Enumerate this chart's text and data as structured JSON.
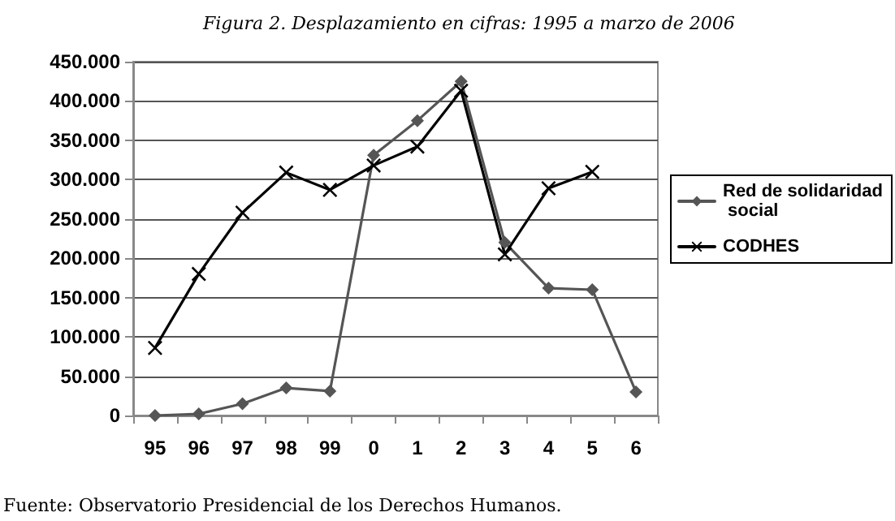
{
  "chart_data": {
    "type": "line",
    "title": "Figura 2. Desplazamiento en cifras: 1995 a marzo de 2006",
    "categories": [
      "95",
      "96",
      "97",
      "98",
      "99",
      "0",
      "1",
      "2",
      "3",
      "4",
      "5",
      "6"
    ],
    "series": [
      {
        "name": "Red de solidaridad social",
        "color": "#555555",
        "marker": "diamond",
        "values": [
          0,
          2000,
          15000,
          35000,
          31000,
          331000,
          375000,
          425000,
          220000,
          162000,
          160000,
          30000
        ]
      },
      {
        "name": "CODHES",
        "color": "#000000",
        "marker": "cross",
        "values": [
          86000,
          180000,
          258000,
          309000,
          287000,
          318000,
          342000,
          413000,
          205000,
          289000,
          310000,
          null
        ]
      }
    ],
    "ylim": [
      0,
      450000
    ],
    "yticks": [
      {
        "value": 0,
        "label": "0"
      },
      {
        "value": 50000,
        "label": "50.000"
      },
      {
        "value": 100000,
        "label": "100.000"
      },
      {
        "value": 150000,
        "label": "150.000"
      },
      {
        "value": 200000,
        "label": "200.000"
      },
      {
        "value": 250000,
        "label": "250.000"
      },
      {
        "value": 300000,
        "label": "300.000"
      },
      {
        "value": 350000,
        "label": "350.000"
      },
      {
        "value": 400000,
        "label": "400.000"
      },
      {
        "value": 450000,
        "label": "450.000"
      }
    ],
    "grid": "y",
    "legend": "right",
    "line_style": "solid",
    "annotations": [
      "Fuente: Observatorio Presidencial de los Derechos Humanos."
    ]
  }
}
